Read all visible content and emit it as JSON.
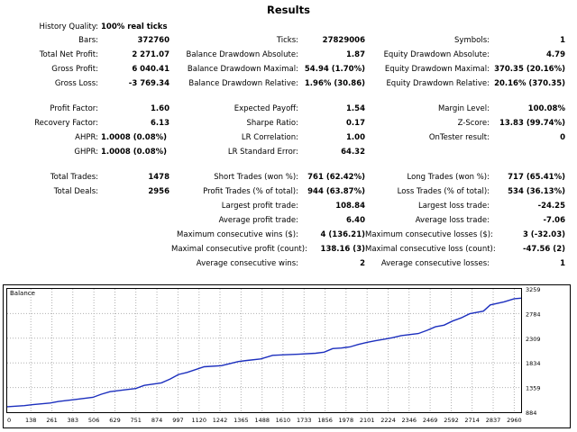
{
  "results": {
    "title": "Results",
    "history_quality": {
      "label": "History Quality:",
      "value": "100% real ticks"
    },
    "bars": {
      "label": "Bars:",
      "value": "372760"
    },
    "ticks": {
      "label": "Ticks:",
      "value": "27829006"
    },
    "symbols": {
      "label": "Symbols:",
      "value": "1"
    },
    "total_net_profit": {
      "label": "Total Net Profit:",
      "value": "2 271.07"
    },
    "balance_dd_absolute": {
      "label": "Balance Drawdown Absolute:",
      "value": "1.87"
    },
    "equity_dd_absolute": {
      "label": "Equity Drawdown Absolute:",
      "value": "4.79"
    },
    "gross_profit": {
      "label": "Gross Profit:",
      "value": "6 040.41"
    },
    "balance_dd_maximal": {
      "label": "Balance Drawdown Maximal:",
      "value": "54.94 (1.70%)"
    },
    "equity_dd_maximal": {
      "label": "Equity Drawdown Maximal:",
      "value": "370.35 (20.16%)"
    },
    "gross_loss": {
      "label": "Gross Loss:",
      "value": "-3 769.34"
    },
    "balance_dd_relative": {
      "label": "Balance Drawdown Relative:",
      "value": "1.96% (30.86)"
    },
    "equity_dd_relative": {
      "label": "Equity Drawdown Relative:",
      "value": "20.16% (370.35)"
    },
    "profit_factor": {
      "label": "Profit Factor:",
      "value": "1.60"
    },
    "expected_payoff": {
      "label": "Expected Payoff:",
      "value": "1.54"
    },
    "margin_level": {
      "label": "Margin Level:",
      "value": "100.08%"
    },
    "recovery_factor": {
      "label": "Recovery Factor:",
      "value": "6.13"
    },
    "sharpe_ratio": {
      "label": "Sharpe Ratio:",
      "value": "0.17"
    },
    "z_score": {
      "label": "Z-Score:",
      "value": "13.83 (99.74%)"
    },
    "ahpr": {
      "label": "AHPR:",
      "value": "1.0008 (0.08%)"
    },
    "lr_correlation": {
      "label": "LR Correlation:",
      "value": "1.00"
    },
    "ontester_result": {
      "label": "OnTester result:",
      "value": "0"
    },
    "ghpr": {
      "label": "GHPR:",
      "value": "1.0008 (0.08%)"
    },
    "lr_standard_error": {
      "label": "LR Standard Error:",
      "value": "64.32"
    },
    "total_trades": {
      "label": "Total Trades:",
      "value": "1478"
    },
    "short_trades": {
      "label": "Short Trades (won %):",
      "value": "761 (62.42%)"
    },
    "long_trades": {
      "label": "Long Trades (won %):",
      "value": "717 (65.41%)"
    },
    "total_deals": {
      "label": "Total Deals:",
      "value": "2956"
    },
    "profit_trades": {
      "label": "Profit Trades (% of total):",
      "value": "944 (63.87%)"
    },
    "loss_trades": {
      "label": "Loss Trades (% of total):",
      "value": "534 (36.13%)"
    },
    "largest_profit_trade": {
      "label": "Largest profit trade:",
      "value": "108.84"
    },
    "largest_loss_trade": {
      "label": "Largest loss trade:",
      "value": "-24.25"
    },
    "average_profit_trade": {
      "label": "Average profit trade:",
      "value": "6.40"
    },
    "average_loss_trade": {
      "label": "Average loss trade:",
      "value": "-7.06"
    },
    "max_consecutive_wins": {
      "label": "Maximum consecutive wins ($):",
      "value": "4 (136.21)"
    },
    "max_consecutive_losses": {
      "label": "Maximum consecutive losses ($):",
      "value": "3 (-32.03)"
    },
    "maximal_consecutive_profit": {
      "label": "Maximal consecutive profit (count):",
      "value": "138.16 (3)"
    },
    "maximal_consecutive_loss": {
      "label": "Maximal consecutive loss (count):",
      "value": "-47.56 (2)"
    },
    "average_consecutive_wins": {
      "label": "Average consecutive wins:",
      "value": "2"
    },
    "average_consecutive_losses": {
      "label": "Average consecutive losses:",
      "value": "1"
    }
  },
  "chart_data": {
    "type": "line",
    "title": "Balance",
    "x_ticks": [
      "0",
      "138",
      "261",
      "383",
      "506",
      "629",
      "751",
      "874",
      "997",
      "1120",
      "1242",
      "1365",
      "1488",
      "1610",
      "1733",
      "1856",
      "1978",
      "2101",
      "2224",
      "2346",
      "2469",
      "2592",
      "2714",
      "2837",
      "2960"
    ],
    "y_ticks": [
      "3259",
      "2784",
      "2309",
      "1834",
      "1359",
      "884"
    ],
    "xlim": [
      0,
      3000
    ],
    "ylim": [
      884,
      3259
    ],
    "grid": true,
    "line_color": "#1c2fbe",
    "series": [
      {
        "x": [
          0,
          100,
          150,
          250,
          300,
          400,
          500,
          550,
          600,
          700,
          750,
          800,
          900,
          950,
          1000,
          1050,
          1150,
          1250,
          1350,
          1400,
          1480,
          1550,
          1620,
          1700,
          1800,
          1850,
          1900,
          1950,
          2000,
          2050,
          2100,
          2150,
          2200,
          2250,
          2300,
          2400,
          2450,
          2500,
          2550,
          2600,
          2650,
          2700,
          2780,
          2820,
          2900,
          2960,
          3000
        ],
        "y": [
          990,
          1010,
          1030,
          1060,
          1090,
          1130,
          1170,
          1230,
          1280,
          1320,
          1340,
          1400,
          1450,
          1520,
          1610,
          1650,
          1760,
          1780,
          1860,
          1880,
          1910,
          1980,
          1990,
          2000,
          2020,
          2040,
          2110,
          2120,
          2140,
          2190,
          2230,
          2260,
          2290,
          2320,
          2360,
          2400,
          2460,
          2530,
          2560,
          2640,
          2700,
          2780,
          2830,
          2950,
          3010,
          3070,
          3080
        ]
      }
    ]
  }
}
